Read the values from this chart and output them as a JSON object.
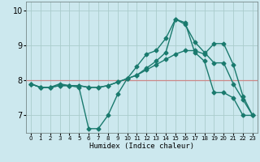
{
  "title": "",
  "xlabel": "Humidex (Indice chaleur)",
  "background_color": "#cce8ee",
  "grid_color": "#aacccc",
  "line_color": "#1a7a6e",
  "hline_color": "#cc8888",
  "ylim": [
    6.5,
    10.25
  ],
  "xlim": [
    -0.5,
    23.5
  ],
  "yticks": [
    7,
    8,
    9,
    10
  ],
  "xticks": [
    0,
    1,
    2,
    3,
    4,
    5,
    6,
    7,
    8,
    9,
    10,
    11,
    12,
    13,
    14,
    15,
    16,
    17,
    18,
    19,
    20,
    21,
    22,
    23
  ],
  "line1": [
    7.9,
    7.8,
    7.8,
    7.9,
    7.85,
    7.8,
    6.62,
    6.62,
    7.0,
    7.6,
    8.05,
    8.4,
    8.75,
    8.85,
    9.2,
    9.75,
    9.65,
    8.8,
    8.55,
    7.65,
    7.65,
    7.5,
    7.0,
    7.0
  ],
  "line2": [
    7.9,
    7.8,
    7.8,
    7.85,
    7.85,
    7.85,
    7.8,
    7.8,
    7.85,
    7.95,
    8.05,
    8.15,
    8.3,
    8.45,
    8.6,
    8.75,
    8.85,
    8.85,
    8.75,
    9.05,
    9.05,
    8.45,
    7.55,
    7.0
  ],
  "line3": [
    7.9,
    7.8,
    7.8,
    7.85,
    7.85,
    7.85,
    7.8,
    7.8,
    7.85,
    7.95,
    8.05,
    8.15,
    8.35,
    8.55,
    8.8,
    9.75,
    9.6,
    9.1,
    8.8,
    8.5,
    8.5,
    7.9,
    7.45,
    7.0
  ],
  "marker": "D",
  "markersize": 2.5,
  "linewidth": 1.0
}
